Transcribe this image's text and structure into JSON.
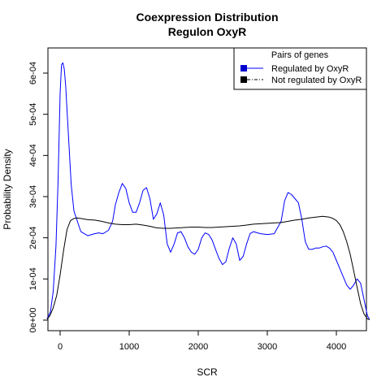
{
  "chart_data": {
    "type": "line",
    "title": "Coexpression Distribution",
    "subtitle": "Regulon OxyR",
    "xlabel": "SCR",
    "ylabel": "Probability Density",
    "xlim": [
      -200,
      4480
    ],
    "ylim": [
      0,
      0.00065
    ],
    "x_ticks": [
      0,
      1000,
      2000,
      3000,
      4000
    ],
    "x_tick_labels": [
      "0",
      "1000",
      "2000",
      "3000",
      "4000"
    ],
    "y_ticks": [
      0,
      0.0001,
      0.0002,
      0.0003,
      0.0004,
      0.0005,
      0.0006
    ],
    "y_tick_labels": [
      "0e+00",
      "1e-04",
      "2e-04",
      "3e-04",
      "4e-04",
      "5e-04",
      "6e-04"
    ],
    "grid": false,
    "legend": {
      "title": "Pairs of genes",
      "placement": "top-right",
      "entries": [
        {
          "label": "Regulated by OxyR",
          "color": "#0000cc"
        },
        {
          "label": "Not regulated by OxyR",
          "color": "#000000"
        }
      ]
    },
    "series": [
      {
        "name": "Regulated by OxyR",
        "color": "#0000ff",
        "x": [
          -190,
          -140,
          -100,
          -60,
          -30,
          0,
          20,
          40,
          60,
          80,
          120,
          160,
          200,
          300,
          400,
          500,
          560,
          620,
          700,
          760,
          800,
          850,
          900,
          950,
          1000,
          1050,
          1100,
          1150,
          1200,
          1250,
          1300,
          1350,
          1400,
          1450,
          1500,
          1550,
          1600,
          1650,
          1700,
          1750,
          1800,
          1850,
          1900,
          1950,
          2000,
          2050,
          2100,
          2150,
          2200,
          2250,
          2300,
          2350,
          2400,
          2450,
          2500,
          2550,
          2600,
          2650,
          2700,
          2750,
          2800,
          2900,
          3000,
          3100,
          3200,
          3250,
          3300,
          3350,
          3400,
          3450,
          3500,
          3550,
          3600,
          3650,
          3700,
          3750,
          3800,
          3850,
          3900,
          3950,
          4000,
          4050,
          4100,
          4150,
          4200,
          4250,
          4300,
          4350,
          4400,
          4450,
          4480
        ],
        "y": [
          3e-06,
          2e-05,
          7e-05,
          0.00018,
          0.00034,
          0.00055,
          0.00062,
          0.000625,
          0.00061,
          0.00057,
          0.00045,
          0.00033,
          0.000265,
          0.000215,
          0.000205,
          0.00021,
          0.000212,
          0.00021,
          0.000218,
          0.00024,
          0.00028,
          0.00031,
          0.000332,
          0.00032,
          0.000285,
          0.000262,
          0.000262,
          0.000285,
          0.000315,
          0.000322,
          0.000295,
          0.000245,
          0.000258,
          0.000285,
          0.000255,
          0.000185,
          0.000165,
          0.000185,
          0.000212,
          0.000215,
          0.0002,
          0.000178,
          0.000165,
          0.00016,
          0.000172,
          0.0002,
          0.000212,
          0.000208,
          0.000195,
          0.000172,
          0.00015,
          0.000135,
          0.000142,
          0.000175,
          0.0002,
          0.000185,
          0.000145,
          0.000155,
          0.000185,
          0.00021,
          0.000215,
          0.00021,
          0.000208,
          0.00021,
          0.00024,
          0.00029,
          0.00031,
          0.000305,
          0.000295,
          0.000285,
          0.000245,
          0.00019,
          0.000172,
          0.000172,
          0.000175,
          0.000175,
          0.000178,
          0.00018,
          0.000175,
          0.000165,
          0.000145,
          0.000125,
          0.000105,
          8.5e-05,
          7.5e-05,
          8.5e-05,
          0.0001,
          9e-05,
          5e-05,
          1e-05,
          2e-06
        ]
      },
      {
        "name": "Not regulated by OxyR",
        "color": "#000000",
        "x": [
          -190,
          -150,
          -100,
          -50,
          0,
          50,
          100,
          150,
          200,
          250,
          300,
          400,
          500,
          600,
          700,
          800,
          900,
          1000,
          1100,
          1200,
          1300,
          1400,
          1500,
          1600,
          1700,
          1800,
          1900,
          2000,
          2100,
          2200,
          2300,
          2400,
          2500,
          2600,
          2700,
          2800,
          2900,
          3000,
          3100,
          3200,
          3300,
          3400,
          3500,
          3600,
          3700,
          3800,
          3900,
          3950,
          4000,
          4050,
          4100,
          4150,
          4200,
          4250,
          4300,
          4350,
          4400,
          4450,
          4480
        ],
        "y": [
          3e-06,
          1e-05,
          3e-05,
          6e-05,
          0.00011,
          0.00017,
          0.00022,
          0.000242,
          0.000247,
          0.000248,
          0.000247,
          0.000244,
          0.000243,
          0.00024,
          0.000236,
          0.000233,
          0.000232,
          0.000232,
          0.000233,
          0.000231,
          0.000228,
          0.000224,
          0.000223,
          0.000223,
          0.000224,
          0.000225,
          0.000226,
          0.000226,
          0.000225,
          0.000225,
          0.000226,
          0.000227,
          0.000228,
          0.000229,
          0.000231,
          0.000233,
          0.000234,
          0.000235,
          0.000236,
          0.000237,
          0.00024,
          0.000243,
          0.000245,
          0.000248,
          0.00025,
          0.000252,
          0.00025,
          0.000247,
          0.000242,
          0.000232,
          0.000215,
          0.00019,
          0.00016,
          0.00012,
          8e-05,
          4e-05,
          1.5e-05,
          3e-06,
          1e-06
        ]
      }
    ]
  }
}
